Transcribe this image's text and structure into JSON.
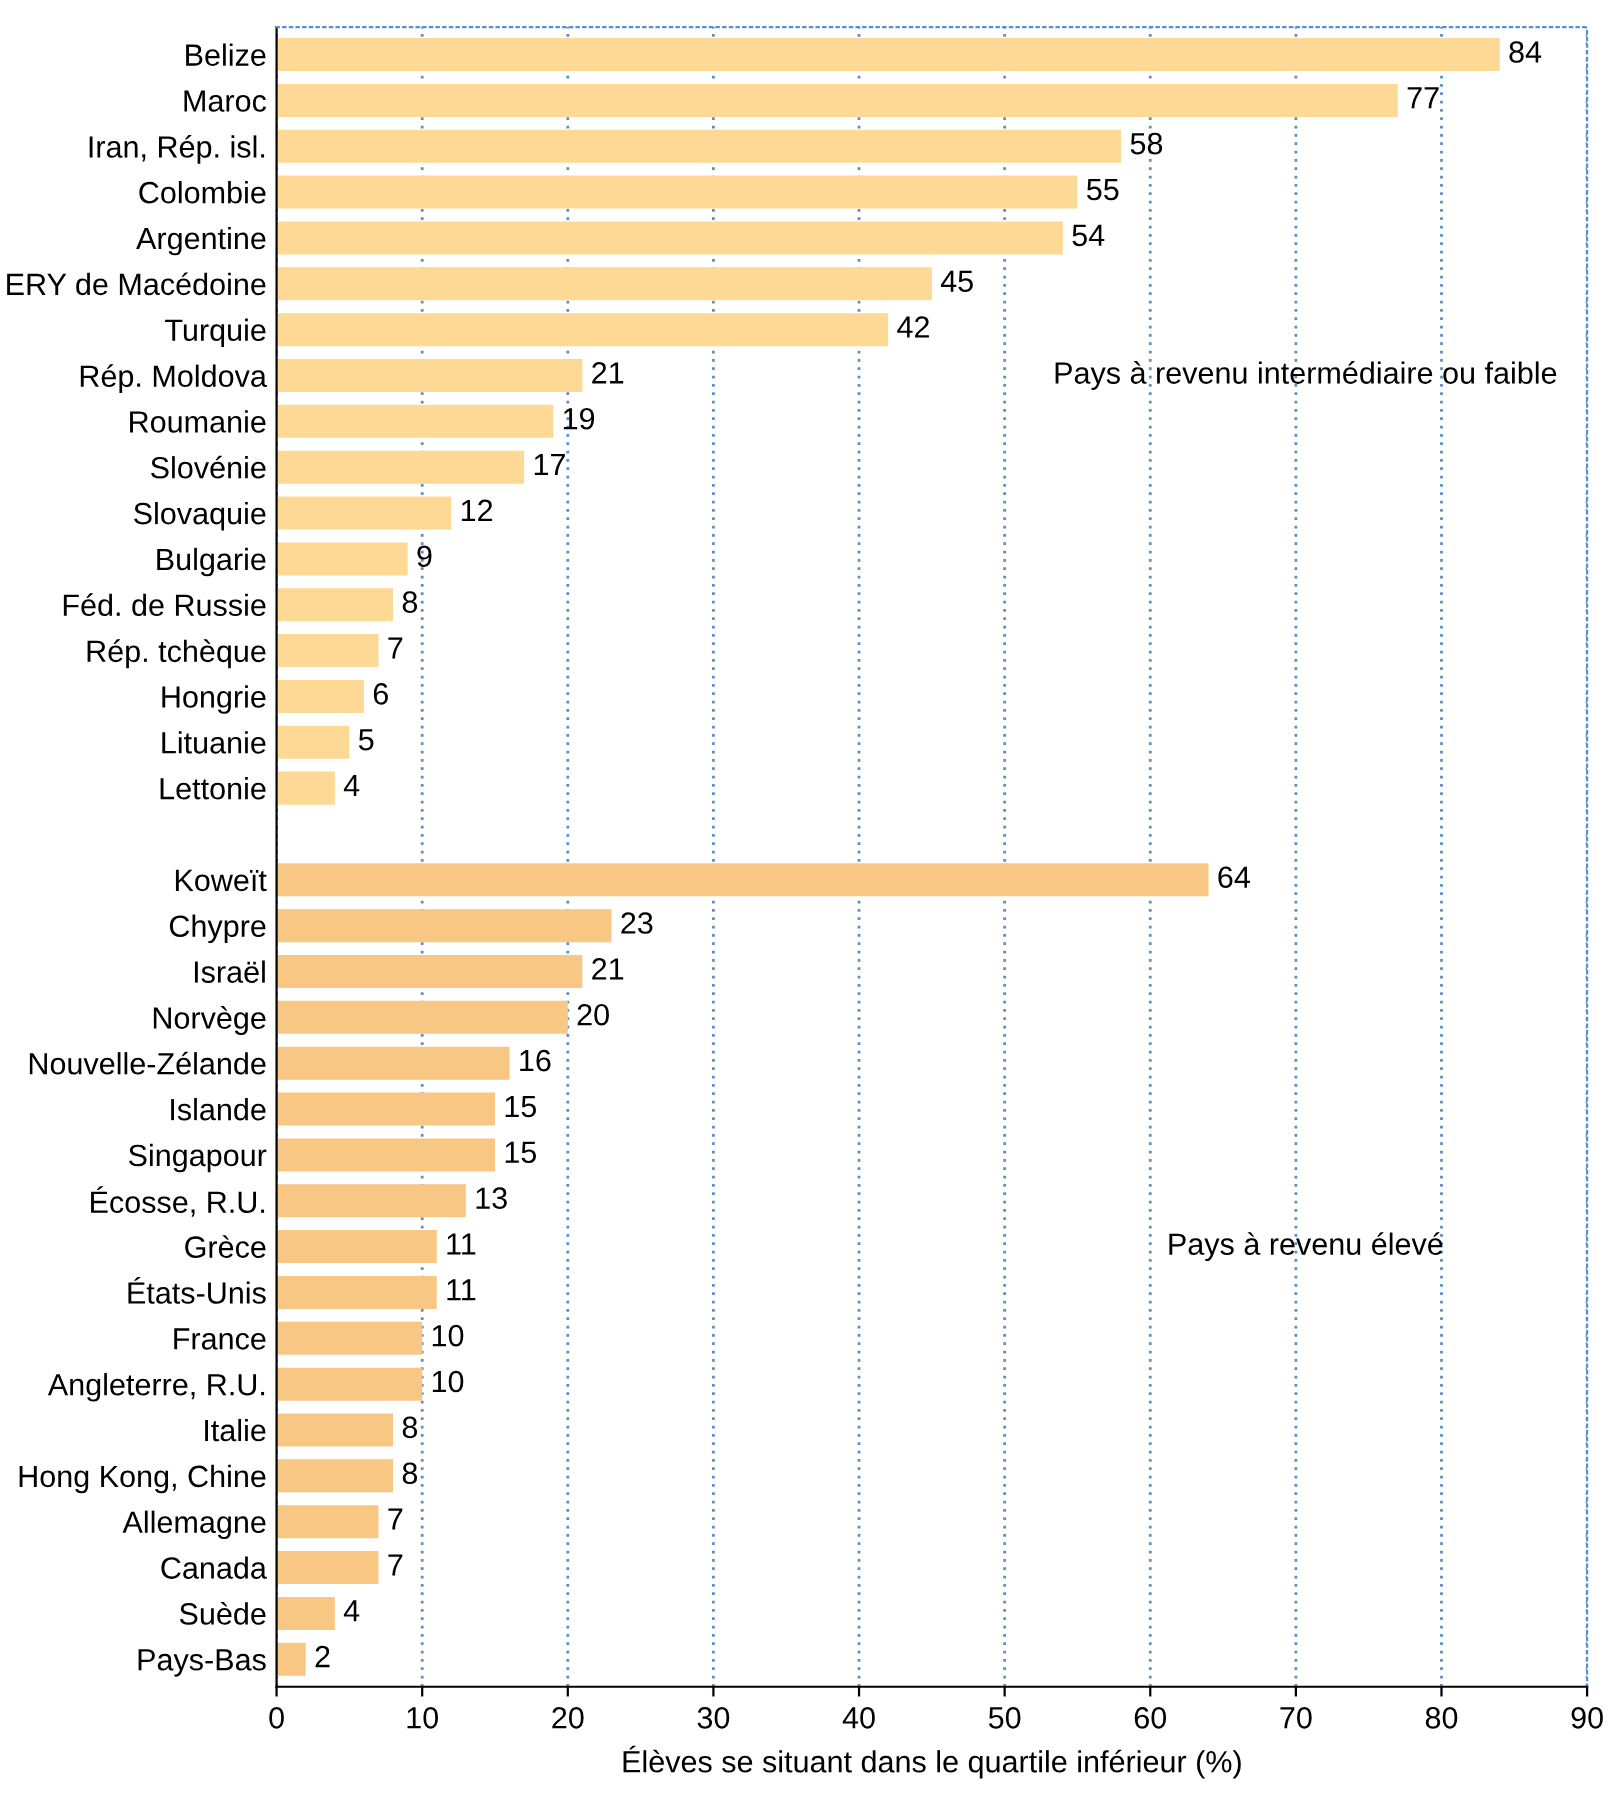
{
  "chart_data": {
    "type": "bar",
    "orientation": "horizontal",
    "xlabel": "Élèves se situant dans le quartile inférieur (%)",
    "categories": [
      "Belize",
      "Maroc",
      "Iran, Rép. isl.",
      "Colombie",
      "Argentine",
      "ERY de Macédoine",
      "Turquie",
      "Rép. Moldova",
      "Roumanie",
      "Slovénie",
      "Slovaquie",
      "Bulgarie",
      "Féd. de Russie",
      "Rép. tchèque",
      "Hongrie",
      "Lituanie",
      "Lettonie",
      null,
      "Koweït",
      "Chypre",
      "Israël",
      "Norvège",
      "Nouvelle-Zélande",
      "Islande",
      "Singapour",
      "Écosse, R.U.",
      "Grèce",
      "États-Unis",
      "France",
      "Angleterre, R.U.",
      "Italie",
      "Hong Kong, Chine",
      "Allemagne",
      "Canada",
      "Suède",
      "Pays-Bas"
    ],
    "values": [
      84,
      77,
      58,
      55,
      54,
      45,
      42,
      21,
      19,
      17,
      12,
      9,
      8,
      7,
      6,
      5,
      4,
      null,
      64,
      23,
      21,
      20,
      16,
      15,
      15,
      13,
      11,
      11,
      10,
      10,
      8,
      8,
      7,
      7,
      4,
      2
    ],
    "colors": [
      "#fdd995",
      "#fdd995",
      "#fdd995",
      "#fdd995",
      "#fdd995",
      "#fdd995",
      "#fdd995",
      "#fdd995",
      "#fdd995",
      "#fdd995",
      "#fdd995",
      "#fdd995",
      "#fdd995",
      "#fdd995",
      "#fdd995",
      "#fdd995",
      "#fdd995",
      null,
      "#f9c784",
      "#f9c784",
      "#f9c784",
      "#f9c784",
      "#f9c784",
      "#f9c784",
      "#f9c784",
      "#f9c784",
      "#f9c784",
      "#f9c784",
      "#f9c784",
      "#f9c784",
      "#f9c784",
      "#f9c784",
      "#f9c784",
      "#f9c784",
      "#f9c784",
      "#f9c784"
    ],
    "data_labels": true,
    "xlim": [
      0,
      90
    ],
    "xticks": [
      0,
      10,
      20,
      30,
      40,
      50,
      60,
      70,
      80,
      90
    ],
    "grid": "x",
    "annotations": [
      "Pays à revenu intermédiaire ou faible",
      "Pays à revenu élevé"
    ]
  }
}
